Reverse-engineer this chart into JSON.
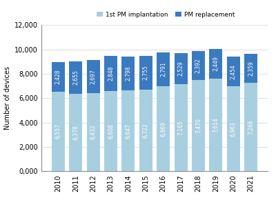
{
  "years": [
    "2010",
    "2011",
    "2012",
    "2013",
    "2014",
    "2015",
    "2016",
    "2017",
    "2018",
    "2019",
    "2020",
    "2021"
  ],
  "first_implant": [
    6557,
    6378,
    6432,
    6608,
    6647,
    6722,
    6969,
    7165,
    7470,
    7614,
    6963,
    7266
  ],
  "replacement": [
    2428,
    2655,
    2697,
    2848,
    2798,
    2755,
    2791,
    2529,
    2392,
    2449,
    2454,
    2359
  ],
  "color_first": "#a8cfe0",
  "color_replace": "#3a7abf",
  "ylabel": "Number of devices",
  "ylim": [
    0,
    12000
  ],
  "yticks": [
    0,
    2000,
    4000,
    6000,
    8000,
    10000,
    12000
  ],
  "ytick_labels": [
    "0,000",
    "2,000",
    "4,000",
    "6,000",
    "8,000",
    "10,000",
    "12,000"
  ],
  "legend_labels": [
    "1st PM implantation",
    "PM replacement"
  ],
  "label_color_first": "white",
  "label_color_replace": "white",
  "label_fontsize": 5.5,
  "axis_fontsize": 7,
  "tick_fontsize": 7,
  "bar_width": 0.75
}
